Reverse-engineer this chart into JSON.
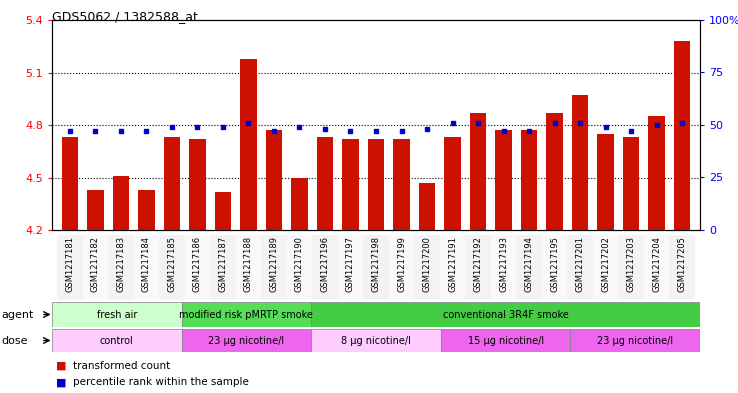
{
  "title": "GDS5062 / 1382588_at",
  "samples": [
    "GSM1217181",
    "GSM1217182",
    "GSM1217183",
    "GSM1217184",
    "GSM1217185",
    "GSM1217186",
    "GSM1217187",
    "GSM1217188",
    "GSM1217189",
    "GSM1217190",
    "GSM1217196",
    "GSM1217197",
    "GSM1217198",
    "GSM1217199",
    "GSM1217200",
    "GSM1217191",
    "GSM1217192",
    "GSM1217193",
    "GSM1217194",
    "GSM1217195",
    "GSM1217201",
    "GSM1217202",
    "GSM1217203",
    "GSM1217204",
    "GSM1217205"
  ],
  "bar_values": [
    4.73,
    4.43,
    4.51,
    4.43,
    4.73,
    4.72,
    4.42,
    5.18,
    4.77,
    4.5,
    4.73,
    4.72,
    4.72,
    4.72,
    4.47,
    4.73,
    4.87,
    4.77,
    4.77,
    4.87,
    4.97,
    4.75,
    4.73,
    4.85,
    5.28
  ],
  "percentile_values": [
    47,
    47,
    47,
    47,
    49,
    49,
    49,
    51,
    47,
    49,
    48,
    47,
    47,
    47,
    48,
    51,
    51,
    47,
    47,
    51,
    51,
    49,
    47,
    50,
    51
  ],
  "bar_color": "#cc1100",
  "dot_color": "#0000cc",
  "ylim_left": [
    4.2,
    5.4
  ],
  "ylim_right": [
    0,
    100
  ],
  "yticks_left": [
    4.2,
    4.5,
    4.8,
    5.1,
    5.4
  ],
  "yticks_right": [
    0,
    25,
    50,
    75,
    100
  ],
  "ytick_labels_right": [
    "0",
    "25",
    "50",
    "75",
    "100%"
  ],
  "hlines": [
    4.5,
    4.8,
    5.1
  ],
  "agent_groups": [
    {
      "label": "fresh air",
      "start": 0,
      "end": 5,
      "color": "#ccffcc"
    },
    {
      "label": "modified risk pMRTP smoke",
      "start": 5,
      "end": 10,
      "color": "#55dd55"
    },
    {
      "label": "conventional 3R4F smoke",
      "start": 10,
      "end": 25,
      "color": "#44cc44"
    }
  ],
  "dose_groups": [
    {
      "label": "control",
      "start": 0,
      "end": 5,
      "color": "#ffccff"
    },
    {
      "label": "23 μg nicotine/l",
      "start": 5,
      "end": 10,
      "color": "#ee66ee"
    },
    {
      "label": "8 μg nicotine/l",
      "start": 10,
      "end": 15,
      "color": "#ffccff"
    },
    {
      "label": "15 μg nicotine/l",
      "start": 15,
      "end": 20,
      "color": "#ee66ee"
    },
    {
      "label": "23 μg nicotine/l",
      "start": 20,
      "end": 25,
      "color": "#ee66ee"
    }
  ],
  "legend_bar_label": "transformed count",
  "legend_dot_label": "percentile rank within the sample",
  "agent_label": "agent",
  "dose_label": "dose",
  "bg_color": "#f0f0f0"
}
